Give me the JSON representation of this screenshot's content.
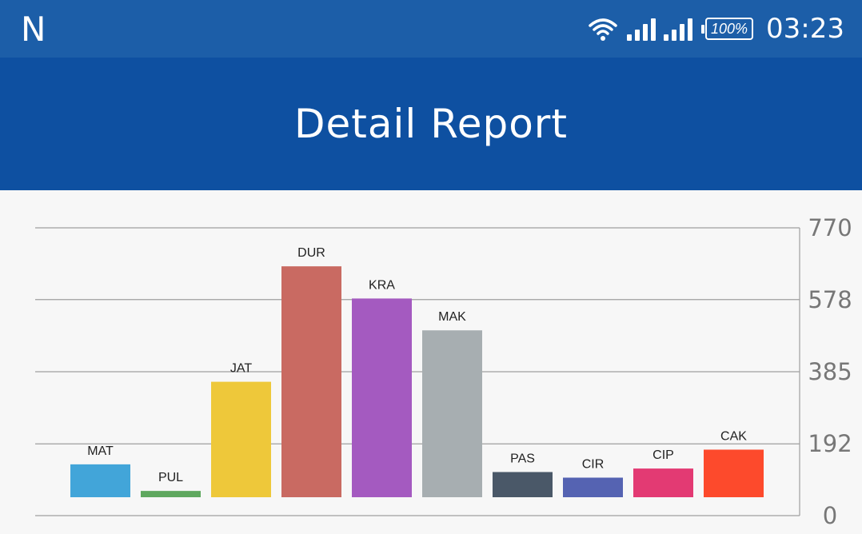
{
  "status_bar": {
    "notification_letter": "N",
    "battery": "100%",
    "time": "03:23",
    "icons": [
      "wifi-icon",
      "signal-icon",
      "signal-icon",
      "battery-icon"
    ]
  },
  "app_bar": {
    "title": "Detail Report"
  },
  "chart_data": {
    "type": "bar",
    "title": "",
    "xlabel": "",
    "ylabel": "",
    "categories": [
      "MAT",
      "PUL",
      "JAT",
      "DUR",
      "KRA",
      "MAK",
      "PAS",
      "CIR",
      "CIP",
      "CAK"
    ],
    "values": [
      94,
      18,
      330,
      660,
      568,
      477,
      72,
      56,
      82,
      136
    ],
    "colors": [
      "#42a5d9",
      "#5fa85f",
      "#eec83a",
      "#c96a62",
      "#a45ac0",
      "#a7aeb1",
      "#4a5868",
      "#5563b2",
      "#e33a73",
      "#fd4a2c"
    ],
    "y_ticks": [
      "770",
      "578",
      "385",
      "192",
      "0"
    ],
    "ylim": [
      0,
      770
    ],
    "y_axis_position": "right",
    "grid": true,
    "legend": "none"
  }
}
